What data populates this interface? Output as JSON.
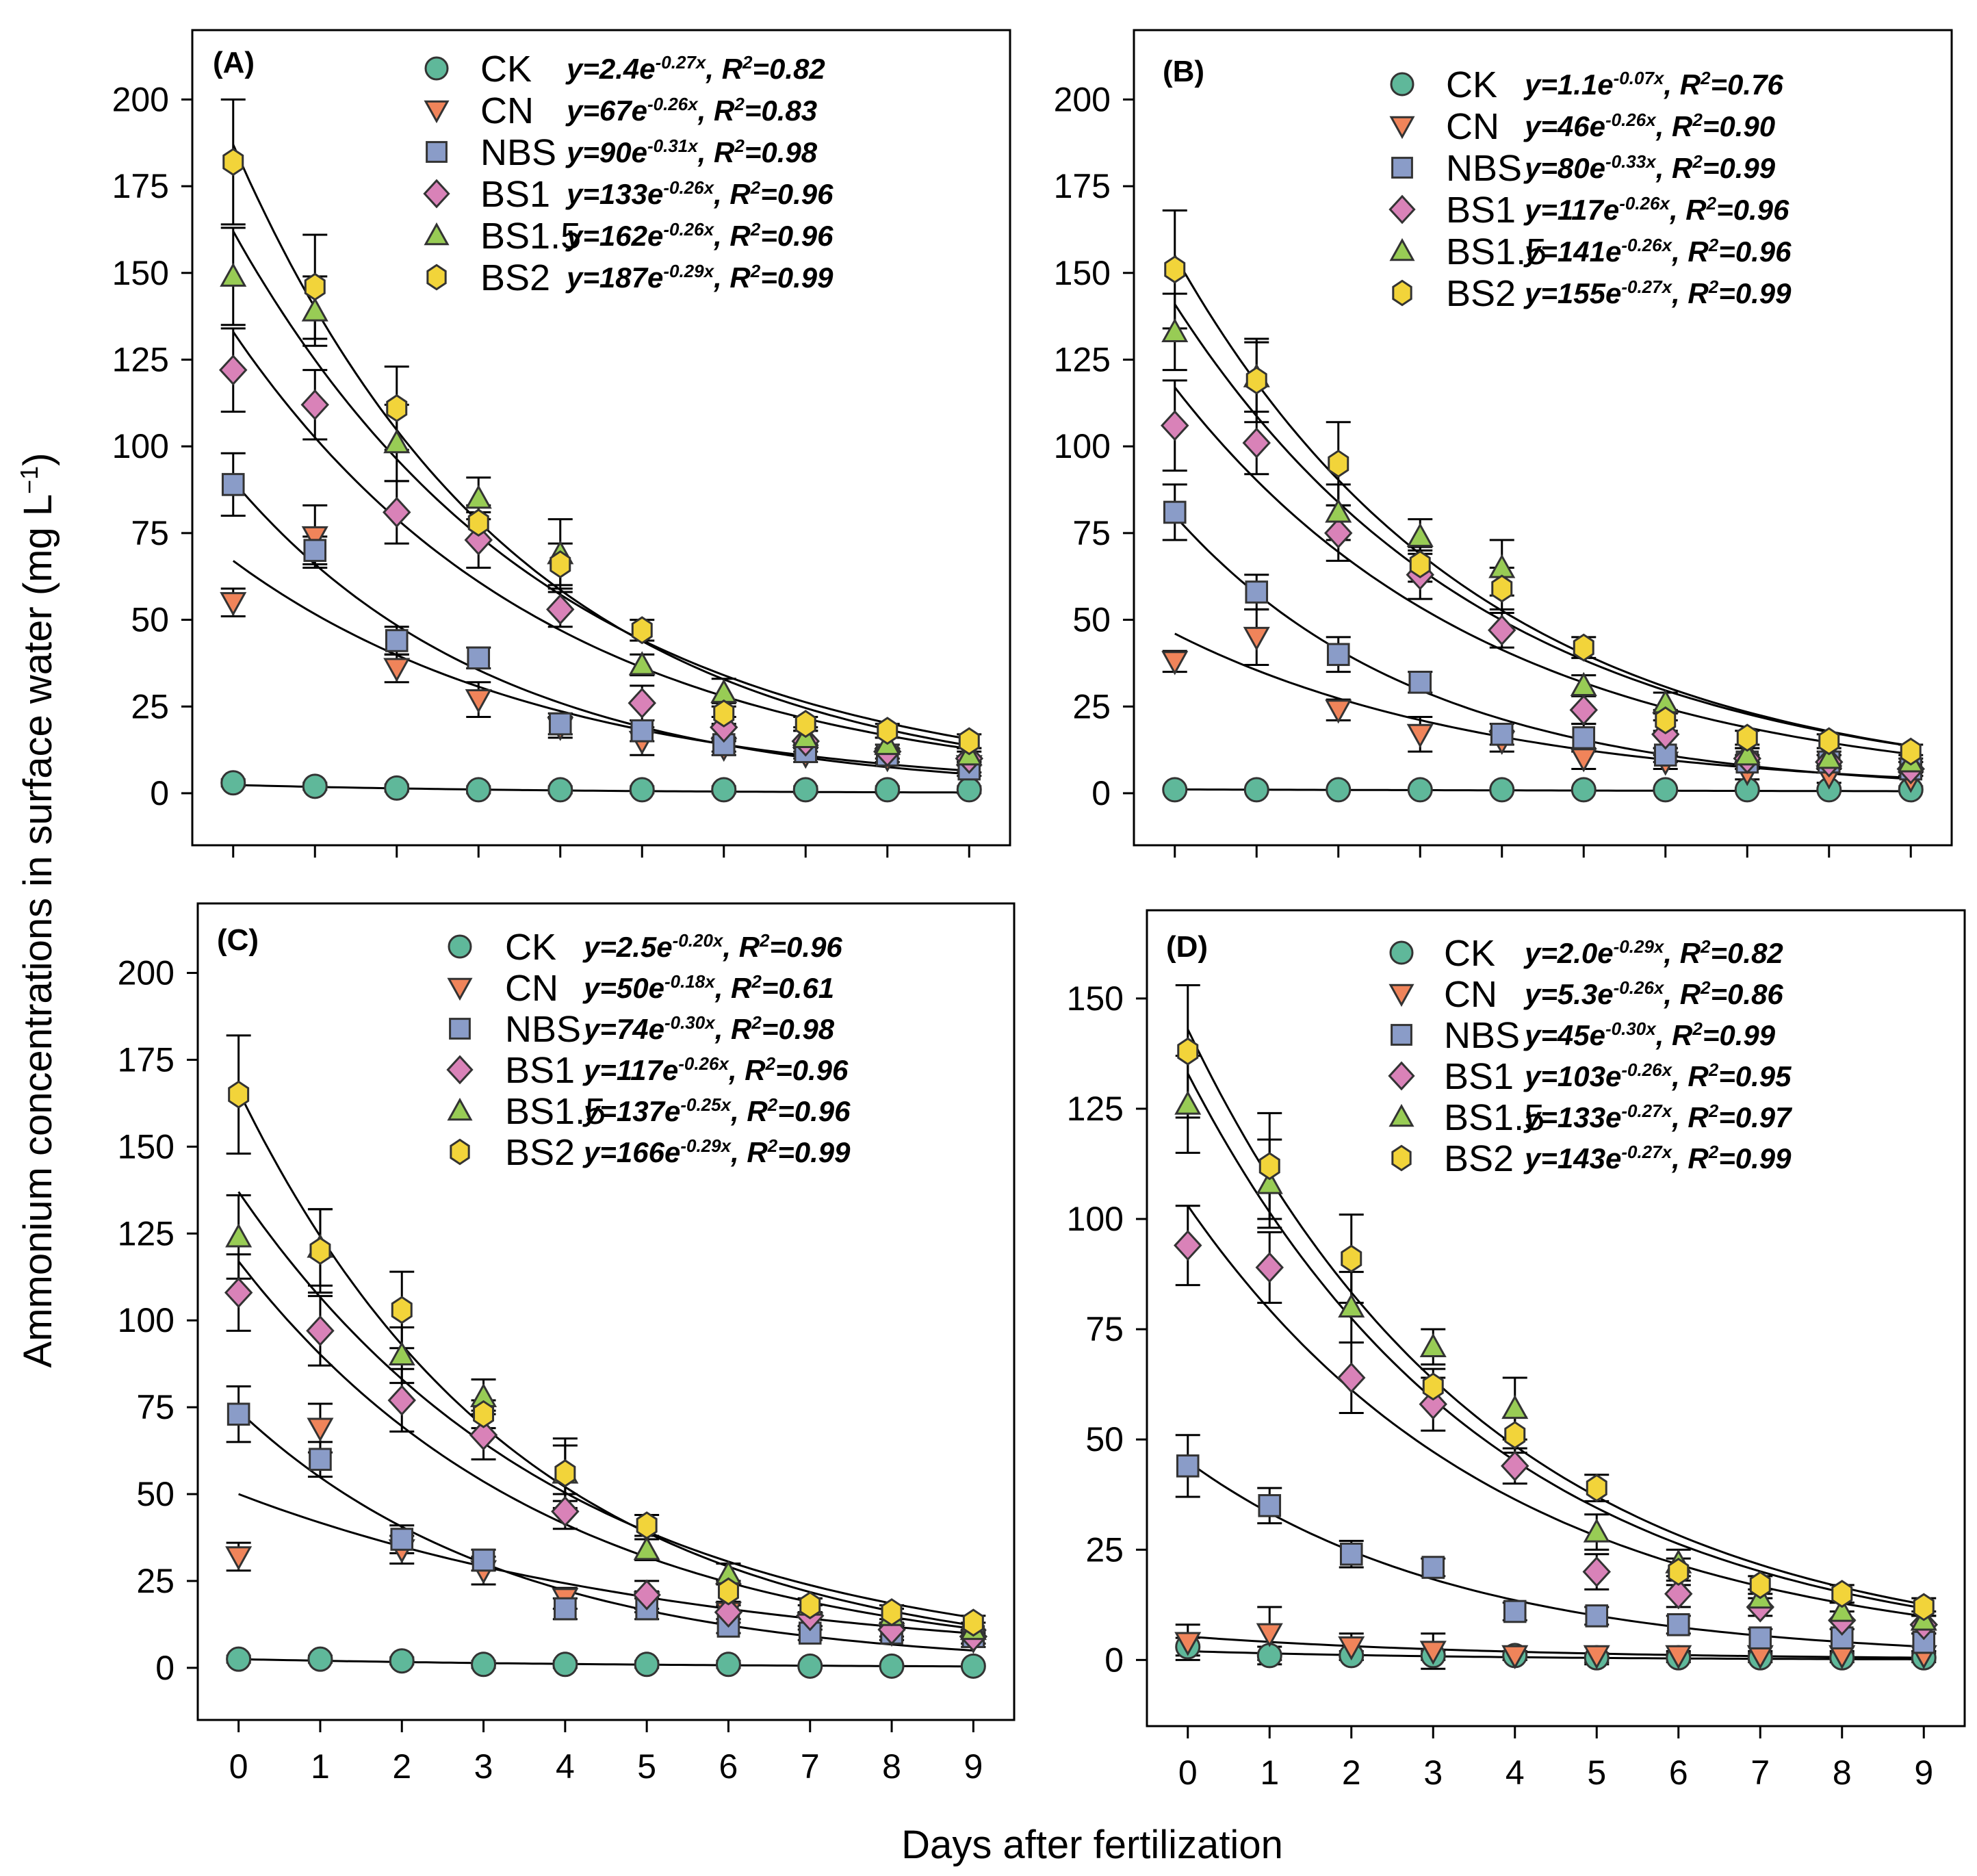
{
  "chart_data": {
    "type": "scatter",
    "ylabel": "Ammonium concentrations in surface water (mg L^{−1})",
    "xlabel": "Days after fertilization",
    "x": [
      0,
      1,
      2,
      3,
      4,
      5,
      6,
      7,
      8,
      9
    ],
    "x_ticks": [
      "0",
      "1",
      "2",
      "3",
      "4",
      "5",
      "6",
      "7",
      "8",
      "9"
    ],
    "grid": false,
    "series_styles": {
      "CK": {
        "marker": "circle",
        "color": "#5fb89a"
      },
      "CN": {
        "marker": "triangle-down",
        "color": "#f0845a"
      },
      "NBS": {
        "marker": "square",
        "color": "#8a9cc8"
      },
      "BS1": {
        "marker": "diamond",
        "color": "#d982b8"
      },
      "BS1.5": {
        "marker": "triangle-up",
        "color": "#98cc55"
      },
      "BS2": {
        "marker": "hexagon",
        "color": "#f2d43a"
      }
    },
    "panels": [
      {
        "label": "(A)",
        "xlim": [
          -0.5,
          9.5
        ],
        "ylim": [
          -15,
          220
        ],
        "y_ticks": [
          "0",
          "25",
          "50",
          "75",
          "100",
          "125",
          "150",
          "175",
          "200"
        ],
        "show_x_tick_labels": false,
        "series": [
          {
            "name": "CK",
            "values": [
              3,
              2,
              1.5,
              1,
              1,
              1,
              1,
              1,
              1,
              1
            ],
            "err": [
              1,
              1,
              1,
              1,
              1,
              1,
              1,
              1,
              1,
              1
            ],
            "fit": {
              "a": 2.4,
              "b": -0.27
            },
            "equation": "y=2.4e^{-0.27x}, R^{2}=0.82"
          },
          {
            "name": "CN",
            "values": [
              55,
              74,
              36,
              27,
              19,
              15,
              13,
              11,
              10,
              8
            ],
            "err": [
              4,
              9,
              4,
              5,
              3,
              4,
              2,
              2,
              2,
              2
            ],
            "fit": {
              "a": 67,
              "b": -0.26
            },
            "equation": "y=67e^{-0.26x}, R^{2}=0.83"
          },
          {
            "name": "NBS",
            "values": [
              89,
              70,
              44,
              39,
              20,
              18,
              14,
              12,
              11,
              7
            ],
            "err": [
              9,
              4,
              4,
              3,
              3,
              3,
              2,
              2,
              2,
              2
            ],
            "fit": {
              "a": 90,
              "b": -0.31
            },
            "equation": "y=90e^{-0.31x}, R^{2}=0.98"
          },
          {
            "name": "BS1",
            "values": [
              122,
              112,
              81,
              73,
              53,
              26,
              19,
              15,
              12,
              10
            ],
            "err": [
              12,
              10,
              9,
              8,
              5,
              5,
              3,
              3,
              2,
              2
            ],
            "fit": {
              "a": 133,
              "b": -0.26
            },
            "equation": "y=133e^{-0.26x}, R^{2}=0.96"
          },
          {
            "name": "BS1.5",
            "values": [
              149,
              139,
              101,
              85,
              69,
              37,
              29,
              16,
              14,
              11
            ],
            "err": [
              14,
              10,
              11,
              6,
              10,
              3,
              4,
              3,
              2,
              2
            ],
            "fit": {
              "a": 162,
              "b": -0.26
            },
            "equation": "y=162e^{-0.26x}, R^{2}=0.96"
          },
          {
            "name": "BS2",
            "values": [
              182,
              146,
              111,
              78,
              66,
              47,
              23,
              20,
              18,
              15
            ],
            "err": [
              18,
              15,
              12,
              5,
              6,
              3,
              3,
              2,
              2,
              2
            ],
            "fit": {
              "a": 187,
              "b": -0.29
            },
            "equation": "y=187e^{-0.29x}, R^{2}=0.99"
          }
        ]
      },
      {
        "label": "(B)",
        "xlim": [
          -0.5,
          9.5
        ],
        "ylim": [
          -15,
          220
        ],
        "y_ticks": [
          "0",
          "25",
          "50",
          "75",
          "100",
          "125",
          "150",
          "175",
          "200"
        ],
        "show_x_tick_labels": false,
        "series": [
          {
            "name": "CK",
            "values": [
              1,
              1,
              1,
              1,
              1,
              1,
              1,
              1,
              1,
              1
            ],
            "err": [
              0.5,
              0.5,
              0.5,
              0.5,
              0.5,
              0.5,
              0.5,
              0.5,
              0.5,
              0.5
            ],
            "fit": {
              "a": 1.1,
              "b": -0.07
            },
            "equation": "y=1.1e^{-0.07x}, R^{2}=0.76"
          },
          {
            "name": "CN",
            "values": [
              38,
              45,
              24,
              17,
              15,
              10,
              9,
              6,
              5,
              4
            ],
            "err": [
              3,
              8,
              3,
              5,
              3,
              3,
              2,
              2,
              2,
              2
            ],
            "fit": {
              "a": 46,
              "b": -0.26
            },
            "equation": "y=46e^{-0.26x}, R^{2}=0.90"
          },
          {
            "name": "NBS",
            "values": [
              81,
              58,
              40,
              32,
              17,
              16,
              11,
              9,
              9,
              7
            ],
            "err": [
              8,
              5,
              5,
              3,
              3,
              4,
              2,
              2,
              2,
              2
            ],
            "fit": {
              "a": 80,
              "b": -0.33
            },
            "equation": "y=80e^{-0.33x}, R^{2}=0.99"
          },
          {
            "name": "BS1",
            "values": [
              106,
              101,
              75,
              63,
              47,
              24,
              17,
              10,
              9,
              7
            ],
            "err": [
              13,
              9,
              8,
              7,
              5,
              4,
              4,
              3,
              2,
              2
            ],
            "fit": {
              "a": 117,
              "b": -0.26
            },
            "equation": "y=117e^{-0.26x}, R^{2}=0.96"
          },
          {
            "name": "BS1.5",
            "values": [
              133,
              120,
              81,
              74,
              65,
              31,
              26,
              11,
              10,
              9
            ],
            "err": [
              11,
              10,
              8,
              5,
              8,
              3,
              3,
              2,
              2,
              2
            ],
            "fit": {
              "a": 141,
              "b": -0.26
            },
            "equation": "y=141e^{-0.26x}, R^{2}=0.96"
          },
          {
            "name": "BS2",
            "values": [
              151,
              119,
              95,
              66,
              59,
              42,
              21,
              16,
              15,
              12
            ],
            "err": [
              17,
              12,
              12,
              5,
              6,
              3,
              3,
              2,
              2,
              2
            ],
            "fit": {
              "a": 155,
              "b": -0.27
            },
            "equation": "y=155e^{-0.27x}, R^{2}=0.99"
          }
        ]
      },
      {
        "label": "(C)",
        "xlim": [
          -0.5,
          9.5
        ],
        "ylim": [
          -15,
          220
        ],
        "y_ticks": [
          "0",
          "25",
          "50",
          "75",
          "100",
          "125",
          "150",
          "175",
          "200"
        ],
        "show_x_tick_labels": true,
        "series": [
          {
            "name": "CK",
            "values": [
              2.5,
              2.5,
              2,
              1,
              1,
              1,
              1,
              0.5,
              0.5,
              0.5
            ],
            "err": [
              1,
              1,
              1,
              1,
              1,
              1,
              1,
              0.5,
              0.5,
              0.5
            ],
            "fit": {
              "a": 2.5,
              "b": -0.2
            },
            "equation": "y=2.5e^{-0.20x}, R^{2}=0.96"
          },
          {
            "name": "CN",
            "values": [
              32,
              69,
              34,
              28,
              20,
              19,
              16,
              13,
              10,
              8
            ],
            "err": [
              4,
              7,
              4,
              4,
              3,
              3,
              2,
              2,
              2,
              2
            ],
            "fit": {
              "a": 50,
              "b": -0.18
            },
            "equation": "y=50e^{-0.18x}, R^{2}=0.61"
          },
          {
            "name": "NBS",
            "values": [
              73,
              60,
              37,
              31,
              17,
              17,
              12,
              10,
              10,
              9
            ],
            "err": [
              8,
              5,
              4,
              3,
              3,
              3,
              2,
              2,
              2,
              2
            ],
            "fit": {
              "a": 74,
              "b": -0.3
            },
            "equation": "y=74e^{-0.30x}, R^{2}=0.98"
          },
          {
            "name": "BS1",
            "values": [
              108,
              97,
              77,
              67,
              45,
              21,
              16,
              15,
              11,
              9
            ],
            "err": [
              11,
              10,
              9,
              7,
              5,
              4,
              3,
              3,
              2,
              2
            ],
            "fit": {
              "a": 117,
              "b": -0.26
            },
            "equation": "y=117e^{-0.26x}, R^{2}=0.96"
          },
          {
            "name": "BS1.5",
            "values": [
              124,
              121,
              90,
              78,
              56,
              34,
              27,
              18,
              15,
              11
            ],
            "err": [
              12,
              11,
              8,
              5,
              8,
              3,
              3,
              2,
              2,
              2
            ],
            "fit": {
              "a": 137,
              "b": -0.25
            },
            "equation": "y=137e^{-0.25x}, R^{2}=0.96"
          },
          {
            "name": "BS2",
            "values": [
              165,
              120,
              103,
              73,
              56,
              41,
              22,
              18,
              16,
              13
            ],
            "err": [
              17,
              12,
              11,
              4,
              10,
              3,
              3,
              2,
              2,
              2
            ],
            "fit": {
              "a": 166,
              "b": -0.29
            },
            "equation": "y=166e^{-0.29x}, R^{2}=0.99"
          }
        ]
      },
      {
        "label": "(D)",
        "xlim": [
          -0.5,
          9.5
        ],
        "ylim": [
          -15,
          170
        ],
        "y_ticks": [
          "0",
          "25",
          "50",
          "75",
          "100",
          "125",
          "150"
        ],
        "show_x_tick_labels": true,
        "series": [
          {
            "name": "CK",
            "values": [
              3,
              1,
              1,
              1,
              1,
              0.5,
              0.5,
              0.5,
              0.5,
              0.5
            ],
            "err": [
              2,
              2,
              1,
              1,
              1,
              1,
              1,
              1,
              1,
              1
            ],
            "fit": {
              "a": 2.0,
              "b": -0.29
            },
            "equation": "y=2.0e^{-0.29x}, R^{2}=0.82"
          },
          {
            "name": "CN",
            "values": [
              4,
              6,
              3,
              2,
              1,
              1,
              1,
              1,
              1,
              1
            ],
            "err": [
              4,
              6,
              3,
              4,
              1,
              2,
              1,
              1,
              1,
              1
            ],
            "fit": {
              "a": 5.3,
              "b": -0.26
            },
            "equation": "y=5.3e^{-0.26x}, R^{2}=0.86"
          },
          {
            "name": "NBS",
            "values": [
              44,
              35,
              24,
              21,
              11,
              10,
              8,
              5,
              5,
              4
            ],
            "err": [
              7,
              4,
              3,
              2,
              2,
              2,
              2,
              2,
              2,
              2
            ],
            "fit": {
              "a": 45,
              "b": -0.3
            },
            "equation": "y=45e^{-0.30x}, R^{2}=0.99"
          },
          {
            "name": "BS1",
            "values": [
              94,
              89,
              64,
              58,
              44,
              20,
              15,
              12,
              9,
              8
            ],
            "err": [
              9,
              8,
              8,
              6,
              4,
              4,
              3,
              2,
              2,
              2
            ],
            "fit": {
              "a": 103,
              "b": -0.26
            },
            "equation": "y=103e^{-0.26x}, R^{2}=0.95"
          },
          {
            "name": "BS1.5",
            "values": [
              126,
              108,
              80,
              71,
              57,
              29,
              22,
              14,
              11,
              9
            ],
            "err": [
              11,
              10,
              8,
              4,
              7,
              4,
              3,
              2,
              2,
              2
            ],
            "fit": {
              "a": 133,
              "b": -0.27
            },
            "equation": "y=133e^{-0.27x}, R^{2}=0.97"
          },
          {
            "name": "BS2",
            "values": [
              138,
              112,
              91,
              62,
              51,
              39,
              20,
              17,
              15,
              12
            ],
            "err": [
              15,
              12,
              10,
              4,
              4,
              3,
              3,
              2,
              2,
              2
            ],
            "fit": {
              "a": 143,
              "b": -0.27
            },
            "equation": "y=143e^{-0.27x}, R^{2}=0.99"
          }
        ]
      }
    ]
  }
}
